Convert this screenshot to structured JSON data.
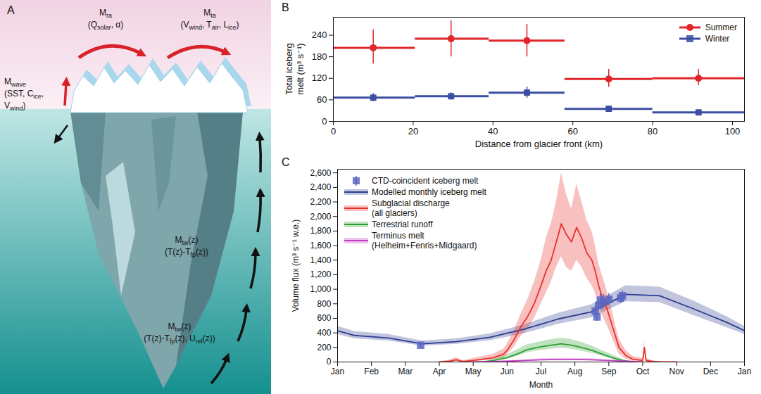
{
  "diagram": {
    "title": "A",
    "labels": [
      [
        [
          {
            "text": "M"
          },
          {
            "text": "ra",
            "sub": true
          }
        ],
        [
          {
            "text": "(Q"
          },
          {
            "text": "solar",
            "sub": true
          },
          {
            "text": ", α)"
          }
        ]
      ],
      [
        [
          {
            "text": "M"
          },
          {
            "text": "ta",
            "sub": true
          }
        ],
        [
          {
            "text": "(V"
          },
          {
            "text": "wind",
            "sub": true
          },
          {
            "text": ", T"
          },
          {
            "text": "air",
            "sub": true
          },
          {
            "text": ", L"
          },
          {
            "text": "ice",
            "sub": true
          },
          {
            "text": ")"
          }
        ]
      ],
      [
        [
          {
            "text": "M"
          },
          {
            "text": "wave",
            "sub": true
          }
        ],
        [
          {
            "text": "(SST, C"
          },
          {
            "text": "ice",
            "sub": true
          },
          {
            "text": ","
          }
        ],
        [
          {
            "text": "V"
          },
          {
            "text": "wind",
            "sub": true
          },
          {
            "text": ")"
          }
        ]
      ],
      [
        [
          {
            "text": "M"
          },
          {
            "text": "tw",
            "sub": true
          },
          {
            "text": "(z)"
          }
        ],
        [
          {
            "text": "(T(z)-T"
          },
          {
            "text": "fp",
            "sub": true
          },
          {
            "text": "(z))"
          }
        ]
      ],
      [
        [
          {
            "text": "M"
          },
          {
            "text": "tw",
            "sub": true
          },
          {
            "text": "(z)"
          }
        ],
        [
          {
            "text": "(T(z)-T"
          },
          {
            "text": "fp",
            "sub": true
          },
          {
            "text": "(z), U"
          },
          {
            "text": "rel",
            "sub": true
          },
          {
            "text": "(z))"
          }
        ]
      ]
    ]
  },
  "chart_data": [
    {
      "type": "scatter",
      "title": "B",
      "x_label": "Distance from glacier front (km)",
      "y_label": "Total iceberg melt (m³ s⁻¹)",
      "xlim": [
        0,
        103
      ],
      "xticks": [
        0,
        20,
        40,
        60,
        80,
        100
      ],
      "ylim": [
        0,
        290
      ],
      "yticks": [
        0,
        60,
        120,
        180,
        240
      ],
      "legend": "upper right",
      "series": [
        {
          "name": "Summer",
          "color": "#e0262b",
          "marker": "circle",
          "x": [
            10,
            29.5,
            48.5,
            69,
            91.5
          ],
          "values": [
            205,
            230,
            225,
            118,
            120
          ],
          "x_low": [
            0,
            20.5,
            39,
            58,
            80
          ],
          "x_high": [
            20.5,
            39,
            58,
            80,
            103
          ],
          "y_low": [
            160,
            180,
            180,
            95,
            100
          ],
          "y_high": [
            255,
            280,
            270,
            145,
            145
          ]
        },
        {
          "name": "Winter",
          "color": "#3b4ea3",
          "marker": "square",
          "x": [
            10,
            29.5,
            48.5,
            69,
            91.5
          ],
          "values": [
            66,
            70,
            80,
            35,
            25
          ],
          "x_low": [
            0,
            20.5,
            39,
            58,
            80
          ],
          "x_high": [
            20.5,
            39,
            58,
            80,
            103
          ],
          "y_low": [
            55,
            60,
            65,
            29,
            20
          ],
          "y_high": [
            78,
            80,
            96,
            42,
            31
          ]
        }
      ]
    },
    {
      "type": "line",
      "title": "C",
      "x_label": "Month",
      "y_label": "Volume flux (m³ s⁻¹ w.e.)",
      "xlim": [
        0,
        12
      ],
      "xticks": [
        {
          "value": 0,
          "label": "Jan"
        },
        {
          "value": 1,
          "label": "Feb"
        },
        {
          "value": 2,
          "label": "Mar"
        },
        {
          "value": 3,
          "label": "Apr"
        },
        {
          "value": 4,
          "label": "May"
        },
        {
          "value": 5,
          "label": "Jun"
        },
        {
          "value": 6,
          "label": "Jul"
        },
        {
          "value": 7,
          "label": "Aug"
        },
        {
          "value": 8,
          "label": "Sep"
        },
        {
          "value": 9,
          "label": "Oct"
        },
        {
          "value": 10,
          "label": "Nov"
        },
        {
          "value": 11,
          "label": "Dec"
        },
        {
          "value": 12,
          "label": "Jan"
        }
      ],
      "ylim": [
        0,
        2650
      ],
      "yticks": [
        0,
        200,
        400,
        600,
        800,
        {
          "value": 1000,
          "label": "1,000"
        },
        {
          "value": 1200,
          "label": "1,200"
        },
        {
          "value": 1400,
          "label": "1,400"
        },
        {
          "value": 1600,
          "label": "1,600"
        },
        {
          "value": 1800,
          "label": "1,800"
        },
        {
          "value": 2000,
          "label": "2,000"
        },
        {
          "value": 2200,
          "label": "2,200"
        },
        {
          "value": 2400,
          "label": "2,400"
        },
        {
          "value": 2600,
          "label": "2,600"
        }
      ],
      "legend": "upper left",
      "series": [
        {
          "name": "CTD-coincident iceberg melt",
          "type": "scatter",
          "marker": "square",
          "color": "#5b67c2",
          "x": [
            2.45,
            7.6,
            7.65,
            7.7,
            7.75,
            7.85,
            8.0,
            8.35,
            8.4
          ],
          "values": [
            230,
            700,
            620,
            780,
            850,
            830,
            860,
            880,
            910
          ],
          "y_low": [
            200,
            620,
            560,
            720,
            760,
            740,
            780,
            810,
            840
          ],
          "y_high": [
            260,
            780,
            680,
            840,
            940,
            930,
            940,
            950,
            980
          ]
        },
        {
          "name": "Modelled monthly iceberg melt",
          "type": "line",
          "color": "#2e3d8f",
          "x": [
            0,
            0.5,
            1.5,
            2.5,
            3.5,
            4.5,
            5.5,
            6.5,
            7.5,
            8.5,
            9.5,
            10.5,
            11.5,
            12
          ],
          "values": [
            430,
            365,
            330,
            250,
            280,
            340,
            450,
            590,
            690,
            930,
            910,
            730,
            540,
            430
          ],
          "y_low": [
            380,
            320,
            290,
            220,
            245,
            295,
            390,
            520,
            610,
            830,
            820,
            640,
            470,
            380
          ],
          "y_high": [
            490,
            420,
            380,
            290,
            320,
            390,
            510,
            670,
            790,
            1050,
            1030,
            840,
            620,
            490
          ]
        },
        {
          "name": "Subglacial discharge (all glaciers)",
          "type": "line",
          "color": "#e8312c",
          "x": [
            3.0,
            3.3,
            3.5,
            3.7,
            4.0,
            4.3,
            4.6,
            4.9,
            5.0,
            5.2,
            5.4,
            5.6,
            5.8,
            6.0,
            6.15,
            6.3,
            6.45,
            6.6,
            6.75,
            6.9,
            7.05,
            7.2,
            7.35,
            7.5,
            7.6,
            7.7,
            7.8,
            7.9,
            8.0,
            8.1,
            8.2,
            8.3,
            8.5,
            8.7,
            9.0,
            9.05,
            9.1,
            9.3,
            9.6,
            10.0
          ],
          "values": [
            0,
            10,
            30,
            5,
            20,
            40,
            60,
            110,
            160,
            300,
            480,
            620,
            800,
            1050,
            1250,
            1400,
            1650,
            1900,
            1750,
            1650,
            1850,
            1700,
            1500,
            1400,
            1250,
            1050,
            900,
            800,
            650,
            500,
            350,
            200,
            90,
            40,
            20,
            200,
            20,
            5,
            0,
            0
          ],
          "y_low": [
            0,
            0,
            10,
            0,
            5,
            20,
            30,
            60,
            100,
            200,
            350,
            450,
            600,
            800,
            950,
            1100,
            1300,
            1450,
            1300,
            1250,
            1400,
            1300,
            1150,
            1050,
            950,
            800,
            650,
            550,
            450,
            330,
            220,
            110,
            40,
            15,
            5,
            120,
            5,
            0,
            0,
            0
          ],
          "y_high": [
            0,
            30,
            60,
            20,
            50,
            80,
            110,
            180,
            250,
            420,
            650,
            850,
            1100,
            1400,
            1700,
            1900,
            2200,
            2600,
            2300,
            2100,
            2450,
            2200,
            1950,
            1800,
            1600,
            1350,
            1200,
            1050,
            880,
            700,
            500,
            320,
            160,
            80,
            50,
            280,
            50,
            20,
            0,
            0
          ]
        },
        {
          "name": "Terrestrial runoff",
          "type": "line",
          "color": "#2fa033",
          "x": [
            4.3,
            4.6,
            5.0,
            5.3,
            5.6,
            6.0,
            6.3,
            6.6,
            6.9,
            7.2,
            7.5,
            7.8,
            8.1,
            8.4,
            8.7
          ],
          "values": [
            0,
            20,
            60,
            110,
            170,
            210,
            230,
            250,
            230,
            200,
            160,
            110,
            60,
            20,
            0
          ],
          "y_low": [
            0,
            10,
            40,
            80,
            130,
            160,
            180,
            190,
            180,
            150,
            120,
            80,
            40,
            10,
            0
          ],
          "y_high": [
            0,
            40,
            100,
            170,
            240,
            280,
            310,
            330,
            310,
            270,
            220,
            160,
            100,
            40,
            0
          ]
        },
        {
          "name": "Terminus melt (Helheim+Fenris+Midgaard)",
          "type": "line",
          "color": "#c43ec4",
          "x": [
            4.0,
            5.0,
            5.5,
            6.0,
            6.5,
            7.0,
            7.5,
            8.0,
            8.5,
            9.0
          ],
          "values": [
            0,
            10,
            20,
            30,
            35,
            35,
            30,
            20,
            10,
            0
          ],
          "y_low": [
            0,
            5,
            12,
            20,
            25,
            25,
            20,
            12,
            5,
            0
          ],
          "y_high": [
            0,
            18,
            30,
            45,
            50,
            50,
            45,
            30,
            18,
            0
          ]
        }
      ]
    }
  ]
}
